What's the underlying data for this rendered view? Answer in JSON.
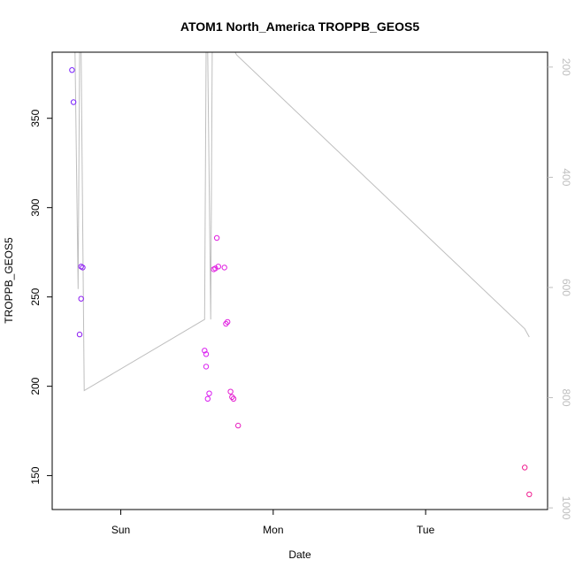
{
  "chart_data": {
    "type": "scatter",
    "title": "ATOM1 North_America TROPPB_GEOS5",
    "xlabel": "Date",
    "ylabel": "TROPPB_GEOS5",
    "x_ticks": [
      {
        "label": "Sun",
        "value": 0.0
      },
      {
        "label": "Mon",
        "value": 1.0
      },
      {
        "label": "Tue",
        "value": 2.0
      }
    ],
    "xlim": [
      -0.45,
      2.8
    ],
    "ylim": [
      131,
      387
    ],
    "y_ticks": [
      150,
      200,
      250,
      300,
      350
    ],
    "y2_label": "",
    "y2_ticks": [
      200,
      400,
      600,
      800,
      1000
    ],
    "y2lim": [
      1003,
      173
    ],
    "points": [
      {
        "x": -0.32,
        "y": 377,
        "color": "#7b22ff"
      },
      {
        "x": -0.31,
        "y": 359,
        "color": "#7b22ff"
      },
      {
        "x": -0.26,
        "y": 267,
        "color": "#8d1ef2"
      },
      {
        "x": -0.25,
        "y": 266.5,
        "color": "#8d1ef2"
      },
      {
        "x": -0.26,
        "y": 249,
        "color": "#8d1ef2"
      },
      {
        "x": -0.27,
        "y": 229,
        "color": "#8d1ef2"
      },
      {
        "x": 0.55,
        "y": 220,
        "color": "#d91ff0"
      },
      {
        "x": 0.56,
        "y": 218,
        "color": "#d91ff0"
      },
      {
        "x": 0.56,
        "y": 211,
        "color": "#d91ff0"
      },
      {
        "x": 0.58,
        "y": 196,
        "color": "#d91ff0"
      },
      {
        "x": 0.57,
        "y": 193,
        "color": "#d91ff0"
      },
      {
        "x": 0.63,
        "y": 283,
        "color": "#e01fe0"
      },
      {
        "x": 0.62,
        "y": 266,
        "color": "#e01fe0"
      },
      {
        "x": 0.61,
        "y": 265.5,
        "color": "#e01fe0"
      },
      {
        "x": 0.64,
        "y": 267,
        "color": "#e01fe0"
      },
      {
        "x": 0.68,
        "y": 266.5,
        "color": "#e01fe0"
      },
      {
        "x": 0.69,
        "y": 235,
        "color": "#e01fe0"
      },
      {
        "x": 0.7,
        "y": 236,
        "color": "#e01fe0"
      },
      {
        "x": 0.72,
        "y": 197,
        "color": "#e41fd0"
      },
      {
        "x": 0.73,
        "y": 194,
        "color": "#e41fd0"
      },
      {
        "x": 0.74,
        "y": 193,
        "color": "#e41fd0"
      },
      {
        "x": 0.77,
        "y": 178,
        "color": "#e81fc0"
      },
      {
        "x": 2.65,
        "y": 154.5,
        "color": "#f01f90"
      },
      {
        "x": 2.68,
        "y": 139.5,
        "color": "#f01f90"
      }
    ],
    "line": {
      "color": "#bebebe",
      "axis": "right",
      "x": [
        -0.31,
        -0.3,
        -0.28,
        -0.27,
        -0.26,
        -0.24,
        0.55,
        0.56,
        0.57,
        0.59,
        0.6,
        0.61,
        0.62,
        0.63,
        0.64,
        0.66,
        0.67,
        0.68,
        0.69,
        0.7,
        0.71,
        0.72,
        0.73,
        0.74,
        0.75,
        0.76,
        2.65,
        2.68
      ],
      "y": [
        173,
        173,
        603,
        173,
        173,
        787,
        658,
        173,
        173,
        658,
        173,
        173,
        173,
        173,
        173,
        173,
        173,
        173,
        173,
        173,
        173,
        173,
        173,
        173,
        173,
        178,
        675,
        690
      ]
    }
  }
}
